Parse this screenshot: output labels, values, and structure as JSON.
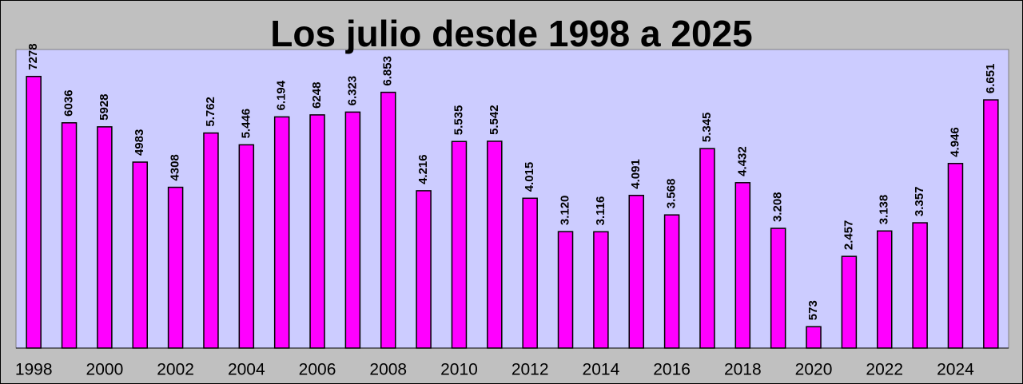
{
  "chart_data": {
    "type": "bar",
    "title": "Los julio desde 1998 a 2025",
    "categories": [
      "1998",
      null,
      "2000",
      null,
      "2002",
      null,
      "2004",
      null,
      "2006",
      null,
      "2008",
      null,
      "2010",
      null,
      "2012",
      null,
      "2014",
      null,
      "2016",
      null,
      "2018",
      null,
      "2020",
      null,
      "2022",
      null,
      "2024",
      null
    ],
    "values": [
      7278,
      6036,
      5928,
      4983,
      4308,
      5762,
      5446,
      6194,
      6248,
      6323,
      6853,
      4216,
      5535,
      5542,
      4015,
      3120,
      3116,
      4091,
      3568,
      5345,
      4432,
      3208,
      573,
      2457,
      3138,
      3357,
      4946,
      6651
    ],
    "value_labels": [
      "7278",
      "6036",
      "5928",
      "4983",
      "4308",
      "5.762",
      "5.446",
      "6.194",
      "6248",
      "6.323",
      "6.853",
      "4.216",
      "5.535",
      "5.542",
      "4.015",
      "3.120",
      "3.116",
      "4.091",
      "3.568",
      "5.345",
      "4.432",
      "3.208",
      "573",
      "2.457",
      "3.138",
      "3.357",
      "4.946",
      "6.651"
    ],
    "color": "#ff00ff",
    "ylim": [
      0,
      8000
    ]
  }
}
